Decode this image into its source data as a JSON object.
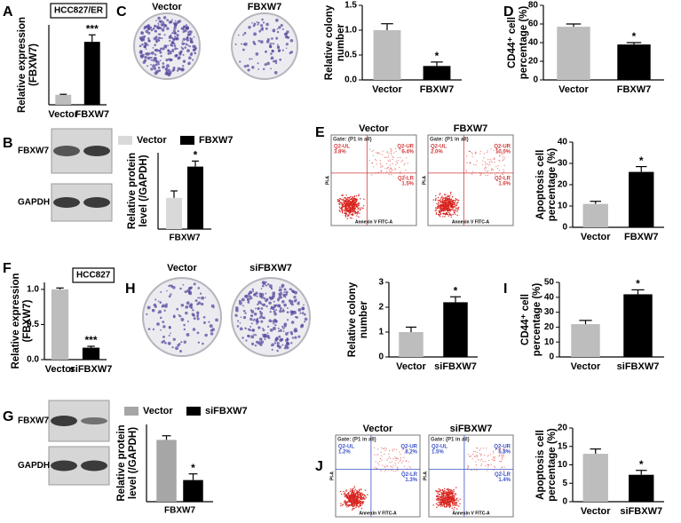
{
  "panel_letters": [
    "A",
    "B",
    "C",
    "D",
    "E",
    "F",
    "G",
    "H",
    "I",
    "J"
  ],
  "blots": [
    {
      "labels": [
        "FBXW7",
        "GAPDH"
      ]
    },
    {
      "labels": [
        "FBXW7",
        "GAPDH"
      ]
    }
  ],
  "plates": [
    {
      "labels": [
        "Vector",
        "FBXW7"
      ]
    },
    {
      "labels": [
        "Vector",
        "siFBXW7"
      ]
    }
  ],
  "flow": [
    {
      "x_label": "Annexin V FITC-A",
      "y_label": "PI-A",
      "plots": [
        {
          "title": "Vector",
          "gate": "Gate: (P1 in all)",
          "quadrants": [
            "Q2-UL",
            "Q2-UR",
            "Q2-LR"
          ],
          "percentages": [
            "3.8%",
            "6.4%",
            "1.5%"
          ]
        },
        {
          "title": "FBXW7",
          "gate": "Gate: (P1 in all)",
          "quadrants": [
            "Q2-UL",
            "Q2-UR",
            "Q2-LR"
          ],
          "percentages": [
            "2.0%",
            "10.0%",
            "1.6%"
          ]
        }
      ]
    },
    {
      "x_label": "Annexin V FITC-A",
      "y_label": "PI-A",
      "plots": [
        {
          "title": "Vector",
          "gate": "Gate: (P1 in all)",
          "quadrants": [
            "Q2-UL",
            "Q2-UR",
            "Q2-LR"
          ],
          "percentages": [
            "1.2%",
            "8.2%",
            "1.3%"
          ]
        },
        {
          "title": "siFBXW7",
          "gate": "Gate: (P1 in all)",
          "quadrants": [
            "Q2-UL",
            "Q2-UR",
            "Q2-LR"
          ],
          "percentages": [
            "1.5%",
            "5.8%",
            "1.4%"
          ]
        }
      ]
    }
  ],
  "chart_data": [
    {
      "type": "bar",
      "tag": "HCC827/ER",
      "ylabel": [
        "Relative expression",
        "(FBXW7)"
      ],
      "categories": [
        "Vector",
        "FBXW7"
      ],
      "values": [
        1,
        6.3
      ],
      "errors": [
        0.05,
        0.7
      ],
      "colors": [
        "#bdbdbd",
        "#000000"
      ],
      "ylim": [
        0,
        8
      ],
      "annotation": "***"
    },
    {
      "type": "bar",
      "ylabel": [
        "Relative colony",
        "number"
      ],
      "categories": [
        "Vector",
        "FBXW7"
      ],
      "values": [
        1.0,
        0.28
      ],
      "errors": [
        0.13,
        0.08
      ],
      "colors": [
        "#bdbdbd",
        "#000000"
      ],
      "ylim": [
        0,
        1.5
      ],
      "yticks": [
        {
          "value": 0,
          "label": "0.0"
        },
        0.5,
        {
          "value": 1,
          "label": "1.0"
        },
        1.5
      ],
      "annotation": "*"
    },
    {
      "type": "bar",
      "ylabel": [
        "CD44⁺ cell",
        "percentage (%)"
      ],
      "categories": [
        "Vector",
        "FBXW7"
      ],
      "values": [
        57,
        38
      ],
      "errors": [
        3,
        2
      ],
      "colors": [
        "#bdbdbd",
        "#000000"
      ],
      "ylim": [
        0,
        80
      ],
      "yticks": [
        0,
        20,
        40,
        60,
        80
      ],
      "annotation": "*"
    },
    {
      "type": "grouped_bar",
      "ylabel": [
        "Relative protein",
        "level (/GAPDH)"
      ],
      "categories": [
        "FBXW7"
      ],
      "series": [
        {
          "name": "Vector",
          "color": "#d9d9d9",
          "values": [
            0.45
          ],
          "errors": [
            0.1
          ]
        },
        {
          "name": "FBXW7",
          "color": "#000000",
          "values": [
            0.9
          ],
          "errors": [
            0.08
          ]
        }
      ],
      "ylim": [
        0,
        1.1
      ],
      "annotation": "*"
    },
    {
      "type": "bar",
      "ylabel": [
        "Apoptosis cell",
        "percentage (%)"
      ],
      "categories": [
        "Vector",
        "FBXW7"
      ],
      "values": [
        11,
        26
      ],
      "errors": [
        1.2,
        2.5
      ],
      "colors": [
        "#bdbdbd",
        "#000000"
      ],
      "ylim": [
        0,
        40
      ],
      "yticks": [
        0,
        10,
        20,
        30,
        40
      ],
      "annotation": "*"
    },
    {
      "type": "bar",
      "tag": "HCC827",
      "ylabel": [
        "Relative expression",
        "(FBXW7)"
      ],
      "categories": [
        "Vector",
        "siFBXW7"
      ],
      "values": [
        1.0,
        0.17
      ],
      "errors": [
        0.02,
        0.02
      ],
      "colors": [
        "#bdbdbd",
        "#000000"
      ],
      "ylim": [
        0,
        1.1
      ],
      "yticks": [
        {
          "value": 0,
          "label": "0.0"
        },
        0.5,
        {
          "value": 1,
          "label": "1.0"
        }
      ],
      "annotation": "***"
    },
    {
      "type": "bar",
      "ylabel": [
        "Relative colony",
        "number"
      ],
      "categories": [
        "Vector",
        "siFBXW7"
      ],
      "values": [
        1.0,
        2.2
      ],
      "errors": [
        0.2,
        0.22
      ],
      "colors": [
        "#bdbdbd",
        "#000000"
      ],
      "ylim": [
        0,
        3
      ],
      "yticks": [
        0,
        1,
        2,
        3
      ],
      "annotation": "*"
    },
    {
      "type": "bar",
      "ylabel": [
        "CD44⁺ cell",
        "percentage (%)"
      ],
      "categories": [
        "Vector",
        "siFBXW7"
      ],
      "values": [
        22,
        42
      ],
      "errors": [
        2.5,
        3
      ],
      "colors": [
        "#bdbdbd",
        "#000000"
      ],
      "ylim": [
        0,
        50
      ],
      "yticks": [
        0,
        10,
        20,
        30,
        40,
        50
      ],
      "annotation": "*"
    },
    {
      "type": "grouped_bar",
      "ylabel": [
        "Relative protein",
        "level (/GAPDH)"
      ],
      "categories": [
        "FBXW7"
      ],
      "series": [
        {
          "name": "Vector",
          "color": "#a6a6a6",
          "values": [
            1.2
          ],
          "errors": [
            0.08
          ]
        },
        {
          "name": "siFBXW7",
          "color": "#000000",
          "values": [
            0.42
          ],
          "errors": [
            0.12
          ]
        }
      ],
      "ylim": [
        0,
        1.5
      ],
      "annotation": "*"
    },
    {
      "type": "bar",
      "ylabel": [
        "Apoptosis cell",
        "percentage (%)"
      ],
      "categories": [
        "Vector",
        "siFBXW7"
      ],
      "values": [
        13,
        7.3
      ],
      "errors": [
        1.3,
        1.2
      ],
      "colors": [
        "#bdbdbd",
        "#000000"
      ],
      "ylim": [
        0,
        20
      ],
      "yticks": [
        0,
        5,
        10,
        15,
        20
      ],
      "annotation": "*"
    }
  ]
}
